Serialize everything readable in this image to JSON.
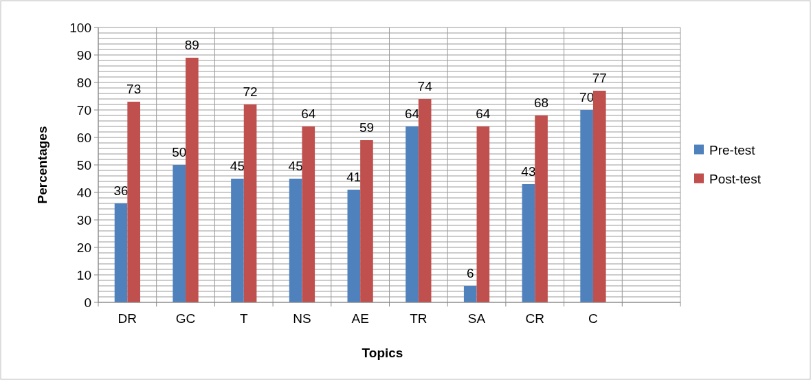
{
  "chart_data": {
    "type": "bar",
    "xlabel": "Topics",
    "ylabel": "Percentages",
    "categories": [
      "DR",
      "GC",
      "T",
      "NS",
      "AE",
      "TR",
      "SA",
      "CR",
      "C",
      null
    ],
    "series": [
      {
        "name": "Pre-test",
        "color": "#4f81bd",
        "values": [
          36,
          50,
          45,
          45,
          41,
          64,
          6,
          43,
          70,
          null
        ]
      },
      {
        "name": "Post-test",
        "color": "#c0504d",
        "values": [
          73,
          89,
          72,
          64,
          59,
          74,
          64,
          68,
          77,
          null
        ]
      }
    ],
    "ylim": [
      0,
      100
    ],
    "yticks": [
      0,
      {
        "value": 2,
        "label": null
      },
      {
        "value": 4,
        "label": null
      },
      {
        "value": 6,
        "label": null
      },
      {
        "value": 8,
        "label": null
      },
      10,
      {
        "value": 12,
        "label": null
      },
      {
        "value": 14,
        "label": null
      },
      {
        "value": 16,
        "label": null
      },
      {
        "value": 18,
        "label": null
      },
      20,
      {
        "value": 22,
        "label": null
      },
      {
        "value": 24,
        "label": null
      },
      {
        "value": 26,
        "label": null
      },
      {
        "value": 28,
        "label": null
      },
      30,
      {
        "value": 32,
        "label": null
      },
      {
        "value": 34,
        "label": null
      },
      {
        "value": 36,
        "label": null
      },
      {
        "value": 38,
        "label": null
      },
      40,
      {
        "value": 42,
        "label": null
      },
      {
        "value": 44,
        "label": null
      },
      {
        "value": 46,
        "label": null
      },
      {
        "value": 48,
        "label": null
      },
      50,
      {
        "value": 52,
        "label": null
      },
      {
        "value": 54,
        "label": null
      },
      {
        "value": 56,
        "label": null
      },
      {
        "value": 58,
        "label": null
      },
      60,
      {
        "value": 62,
        "label": null
      },
      {
        "value": 64,
        "label": null
      },
      {
        "value": 66,
        "label": null
      },
      {
        "value": 68,
        "label": null
      },
      70,
      {
        "value": 72,
        "label": null
      },
      {
        "value": 74,
        "label": null
      },
      {
        "value": 76,
        "label": null
      },
      {
        "value": 78,
        "label": null
      },
      80,
      {
        "value": 82,
        "label": null
      },
      {
        "value": 84,
        "label": null
      },
      {
        "value": 86,
        "label": null
      },
      {
        "value": 88,
        "label": null
      },
      90,
      {
        "value": 92,
        "label": null
      },
      {
        "value": 94,
        "label": null
      },
      {
        "value": 96,
        "label": null
      },
      {
        "value": 98,
        "label": null
      },
      100
    ],
    "grid": true,
    "legend": "right",
    "data_labels": true
  }
}
